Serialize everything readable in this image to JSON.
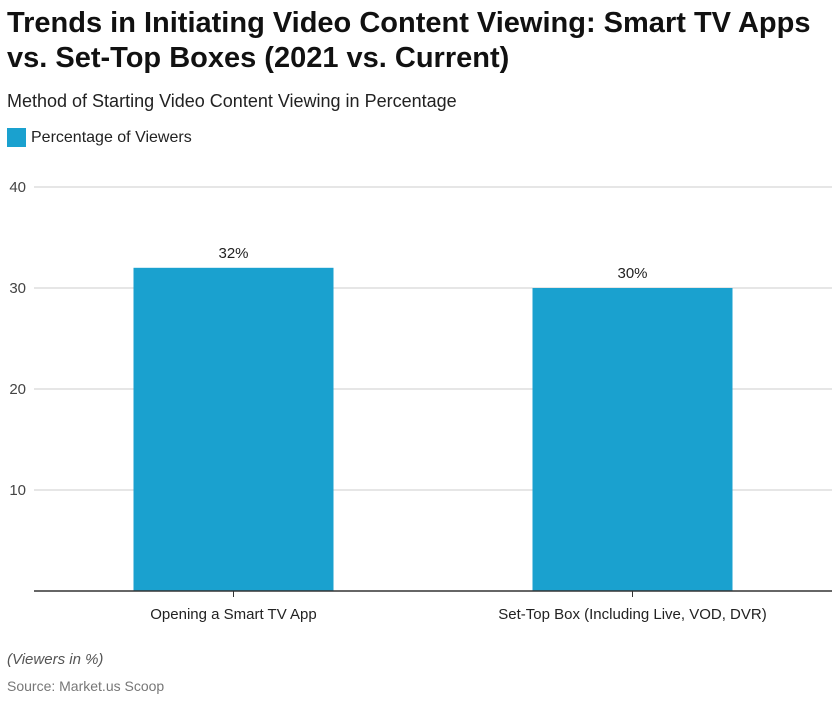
{
  "title": "Trends in Initiating Video Content Viewing: Smart TV Apps vs. Set-Top Boxes (2021 vs. Current)",
  "subtitle": "Method of Starting Video Content Viewing in Percentage",
  "note": "(Viewers in %)",
  "source": "Source: Market.us Scoop",
  "colors": {
    "bar": "#1aa1cf",
    "grid": "#cccccc",
    "axis": "#333333"
  },
  "chart_data": {
    "type": "bar",
    "categories": [
      "Opening a Smart TV App",
      "Set-Top Box (Including Live, VOD, DVR)"
    ],
    "series": [
      {
        "name": "Percentage of Viewers",
        "values": [
          32,
          30
        ]
      }
    ],
    "data_labels": [
      "32%",
      "30%"
    ],
    "y_ticks": [
      "10",
      "20",
      "30",
      "40"
    ],
    "ylim": [
      0,
      40
    ],
    "grid": true,
    "legend": "top-left",
    "xlabel": "",
    "ylabel": ""
  }
}
